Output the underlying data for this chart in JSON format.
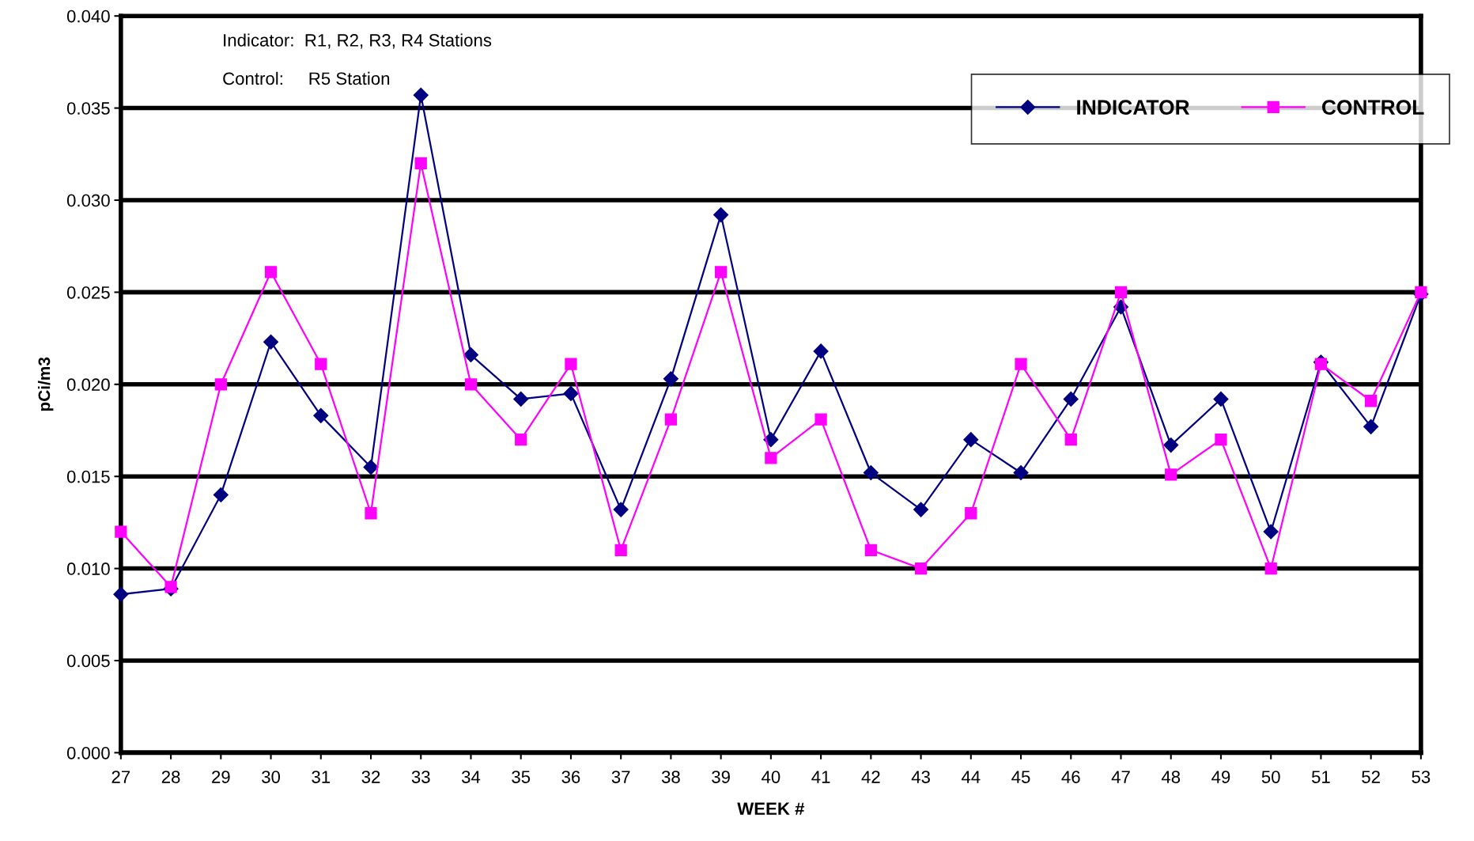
{
  "chart_data": {
    "type": "line",
    "xlabel": "WEEK #",
    "ylabel": "pCi/m3",
    "x": [
      27,
      28,
      29,
      30,
      31,
      32,
      33,
      34,
      35,
      36,
      37,
      38,
      39,
      40,
      41,
      42,
      43,
      44,
      45,
      46,
      47,
      48,
      49,
      50,
      51,
      52,
      53
    ],
    "xlim": [
      27,
      53
    ],
    "xticks": [
      27,
      28,
      29,
      30,
      31,
      32,
      33,
      34,
      35,
      36,
      37,
      38,
      39,
      40,
      41,
      42,
      43,
      44,
      45,
      46,
      47,
      48,
      49,
      50,
      51,
      52,
      53
    ],
    "ylim": [
      0,
      0.04
    ],
    "yticks": [
      {
        "value": 0,
        "label": "0.000"
      },
      {
        "value": 0.005,
        "label": "0.005"
      },
      {
        "value": 0.01,
        "label": "0.010"
      },
      {
        "value": 0.015,
        "label": "0.015"
      },
      {
        "value": 0.02,
        "label": "0.020"
      },
      {
        "value": 0.025,
        "label": "0.025"
      },
      {
        "value": 0.03,
        "label": "0.030"
      },
      {
        "value": 0.035,
        "label": "0.035"
      },
      {
        "value": 0.04,
        "label": "0.040"
      }
    ],
    "grid": "y",
    "legend": "top right",
    "line_style": "solid",
    "annotations": [
      "Indicator:  R1, R2, R3, R4 Stations",
      "Control:     R5 Station"
    ],
    "series": [
      {
        "name": "INDICATOR",
        "color": "#000080",
        "marker": "diamond",
        "values": [
          0.0086,
          0.0089,
          0.014,
          0.0223,
          0.0183,
          0.0155,
          0.0357,
          0.0216,
          0.0192,
          0.0195,
          0.0132,
          0.0203,
          0.0292,
          0.017,
          0.0218,
          0.0152,
          0.0132,
          0.017,
          0.0152,
          0.0192,
          0.0242,
          0.0167,
          0.0192,
          0.012,
          0.0212,
          0.0177,
          0.0249
        ]
      },
      {
        "name": "CONTROL",
        "color": "#ff00ff",
        "marker": "square",
        "values": [
          0.012,
          0.009,
          0.02,
          0.0261,
          0.0211,
          0.013,
          0.032,
          0.02,
          0.017,
          0.0211,
          0.011,
          0.0181,
          0.0261,
          0.016,
          0.0181,
          0.011,
          0.01,
          0.013,
          0.0211,
          0.017,
          0.025,
          0.0151,
          0.017,
          0.01,
          0.0211,
          0.0191,
          0.025
        ]
      }
    ]
  }
}
